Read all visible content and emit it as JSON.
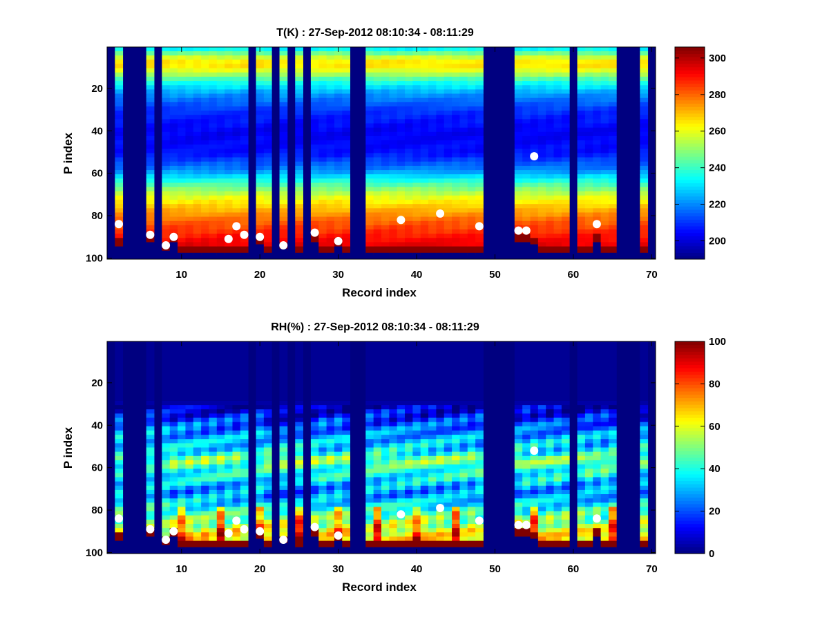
{
  "chart_data": [
    {
      "type": "heatmap",
      "title": "T(K) : 27-Sep-2012 08:10:34 - 08:11:29",
      "xlabel": "Record index",
      "ylabel": "P index",
      "xlim": [
        0.5,
        70.5
      ],
      "ylim": [
        1,
        100
      ],
      "y_reversed": true,
      "xticks": [
        10,
        20,
        30,
        40,
        50,
        60,
        70
      ],
      "yticks": [
        20,
        40,
        60,
        80,
        100
      ],
      "colormap": "jet",
      "clim": [
        190,
        306
      ],
      "colorbar_ticks": [
        200,
        220,
        240,
        260,
        280,
        300
      ],
      "missing_fill_value": 190,
      "missing_records": [
        1,
        3,
        4,
        5,
        7,
        19,
        22,
        24,
        26,
        32,
        33,
        49,
        50,
        51,
        52,
        60,
        66,
        67,
        68,
        70
      ],
      "profile_bottom_index": {
        "default": 97,
        "overrides": {
          "2": 94,
          "6": 92,
          "8": 96,
          "9": 92,
          "20": 93,
          "23": 95,
          "27": 92,
          "30": 94,
          "53": 92,
          "54": 92,
          "55": 93,
          "63": 92
        }
      },
      "surface_value": 305,
      "profile_T_by_pindex": {
        "p": [
          1,
          5,
          8,
          12,
          16,
          22,
          30,
          40,
          50,
          58,
          64,
          70,
          76,
          82,
          88,
          95,
          100
        ],
        "T": [
          234,
          257,
          268,
          256,
          238,
          222,
          210,
          203,
          206,
          220,
          240,
          258,
          270,
          280,
          288,
          296,
          300
        ]
      },
      "markers": [
        {
          "x": 2,
          "y": 84
        },
        {
          "x": 6,
          "y": 89
        },
        {
          "x": 8,
          "y": 94
        },
        {
          "x": 9,
          "y": 90
        },
        {
          "x": 16,
          "y": 91
        },
        {
          "x": 17,
          "y": 85
        },
        {
          "x": 18,
          "y": 89
        },
        {
          "x": 20,
          "y": 90
        },
        {
          "x": 23,
          "y": 94
        },
        {
          "x": 27,
          "y": 88
        },
        {
          "x": 30,
          "y": 92
        },
        {
          "x": 38,
          "y": 82
        },
        {
          "x": 43,
          "y": 79
        },
        {
          "x": 48,
          "y": 85
        },
        {
          "x": 53,
          "y": 87
        },
        {
          "x": 54,
          "y": 87
        },
        {
          "x": 55,
          "y": 52
        },
        {
          "x": 63,
          "y": 84
        }
      ]
    },
    {
      "type": "heatmap",
      "title": "RH(%) : 27-Sep-2012 08:10:34 - 08:11:29",
      "xlabel": "Record index",
      "ylabel": "P index",
      "xlim": [
        0.5,
        70.5
      ],
      "ylim": [
        1,
        100
      ],
      "y_reversed": true,
      "xticks": [
        10,
        20,
        30,
        40,
        50,
        60,
        70
      ],
      "yticks": [
        20,
        40,
        60,
        80,
        100
      ],
      "colormap": "jet",
      "clim": [
        0,
        100
      ],
      "colorbar_ticks": [
        0,
        20,
        40,
        60,
        80,
        100
      ],
      "missing_fill_value": 0,
      "missing_records": [
        1,
        3,
        4,
        5,
        7,
        19,
        22,
        24,
        26,
        32,
        33,
        49,
        50,
        51,
        52,
        60,
        66,
        67,
        68,
        70
      ],
      "profile_bottom_index": {
        "default": 97,
        "overrides": {
          "2": 94,
          "6": 92,
          "8": 96,
          "9": 92,
          "20": 93,
          "23": 95,
          "27": 92,
          "30": 94,
          "53": 92,
          "54": 92,
          "55": 93,
          "63": 92
        }
      },
      "surface_value": 100,
      "profile_RH_by_pindex": {
        "p": [
          1,
          28,
          34,
          44,
          52,
          56,
          60,
          64,
          68,
          72,
          78,
          84,
          90,
          96,
          100
        ],
        "RH": [
          2,
          2,
          12,
          28,
          36,
          52,
          42,
          38,
          30,
          26,
          38,
          50,
          62,
          70,
          75
        ]
      },
      "markers": [
        {
          "x": 2,
          "y": 84
        },
        {
          "x": 6,
          "y": 89
        },
        {
          "x": 8,
          "y": 94
        },
        {
          "x": 9,
          "y": 90
        },
        {
          "x": 16,
          "y": 91
        },
        {
          "x": 17,
          "y": 85
        },
        {
          "x": 18,
          "y": 89
        },
        {
          "x": 20,
          "y": 90
        },
        {
          "x": 23,
          "y": 94
        },
        {
          "x": 27,
          "y": 88
        },
        {
          "x": 30,
          "y": 92
        },
        {
          "x": 38,
          "y": 82
        },
        {
          "x": 43,
          "y": 79
        },
        {
          "x": 48,
          "y": 85
        },
        {
          "x": 53,
          "y": 87
        },
        {
          "x": 54,
          "y": 87
        },
        {
          "x": 55,
          "y": 52
        },
        {
          "x": 63,
          "y": 84
        }
      ]
    }
  ]
}
